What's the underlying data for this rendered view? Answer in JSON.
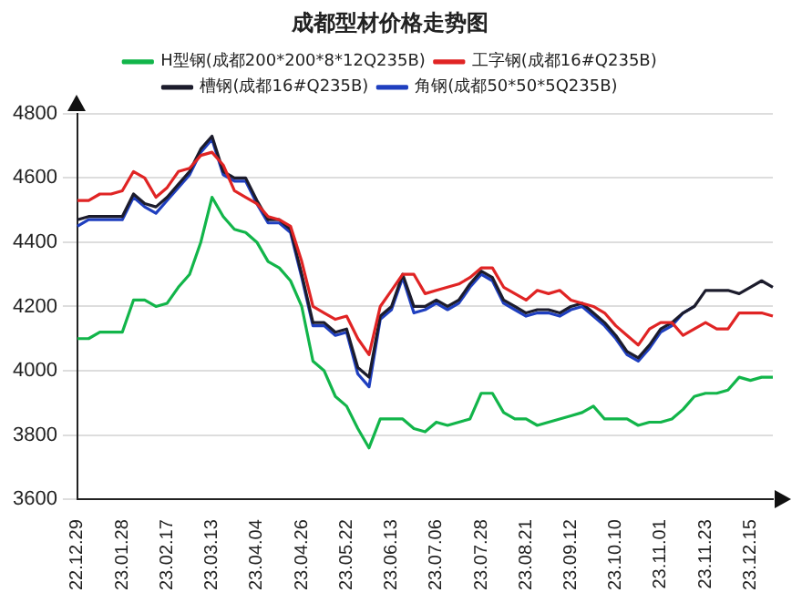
{
  "chart_data": {
    "type": "line",
    "title": "成都型材价格走势图",
    "categories": [
      "22.12.29",
      null,
      null,
      null,
      "23.01.28",
      null,
      null,
      null,
      "23.02.17",
      null,
      null,
      null,
      "23.03.13",
      null,
      null,
      null,
      "23.04.04",
      null,
      null,
      null,
      "23.04.26",
      null,
      null,
      null,
      "23.05.22",
      null,
      null,
      null,
      "23.06.13",
      null,
      null,
      null,
      "23.07.06",
      null,
      null,
      null,
      "23.07.28",
      null,
      null,
      null,
      "23.08.21",
      null,
      null,
      null,
      "23.09.12",
      null,
      null,
      null,
      "23.10.10",
      null,
      null,
      null,
      "23.11.01",
      null,
      null,
      null,
      "23.11.23",
      null,
      null,
      null,
      "23.12.15",
      null,
      null
    ],
    "series": [
      {
        "name": "H型钢(成都200*200*8*12Q235B)",
        "color": "#12b54a",
        "values": [
          4100,
          4100,
          4120,
          4120,
          4120,
          4220,
          4220,
          4200,
          4210,
          4260,
          4300,
          4400,
          4540,
          4480,
          4440,
          4430,
          4400,
          4340,
          4320,
          4280,
          4200,
          4030,
          4000,
          3920,
          3890,
          3820,
          3760,
          3850,
          3850,
          3850,
          3820,
          3810,
          3840,
          3830,
          3840,
          3850,
          3930,
          3930,
          3870,
          3850,
          3850,
          3830,
          3840,
          3850,
          3860,
          3870,
          3890,
          3850,
          3850,
          3850,
          3830,
          3840,
          3840,
          3850,
          3880,
          3920,
          3930,
          3930,
          3940,
          3980,
          3970,
          3980,
          3980
        ]
      },
      {
        "name": "工字钢(成都16#Q235B)",
        "color": "#e02424",
        "values": [
          4530,
          4530,
          4550,
          4550,
          4560,
          4620,
          4600,
          4540,
          4570,
          4620,
          4630,
          4670,
          4680,
          4640,
          4560,
          4540,
          4520,
          4480,
          4470,
          4450,
          4340,
          4200,
          4180,
          4160,
          4170,
          4100,
          4050,
          4200,
          4250,
          4300,
          4300,
          4240,
          4250,
          4260,
          4270,
          4290,
          4320,
          4320,
          4260,
          4240,
          4220,
          4250,
          4240,
          4250,
          4220,
          4210,
          4200,
          4180,
          4140,
          4110,
          4080,
          4130,
          4150,
          4150,
          4110,
          4130,
          4150,
          4130,
          4130,
          4180,
          4180,
          4180,
          4170
        ]
      },
      {
        "name": "槽钢(成都16#Q235B)",
        "color": "#1c1c2c",
        "values": [
          4470,
          4480,
          4480,
          4480,
          4480,
          4550,
          4520,
          4510,
          4540,
          4580,
          4620,
          4690,
          4730,
          4620,
          4600,
          4600,
          4530,
          4470,
          4470,
          4440,
          4300,
          4150,
          4150,
          4120,
          4130,
          4010,
          3980,
          4170,
          4200,
          4300,
          4200,
          4200,
          4220,
          4200,
          4220,
          4270,
          4310,
          4290,
          4220,
          4200,
          4180,
          4190,
          4190,
          4180,
          4200,
          4210,
          4180,
          4150,
          4110,
          4060,
          4040,
          4080,
          4130,
          4150,
          4180,
          4200,
          4250,
          4250,
          4250,
          4240,
          4260,
          4280,
          4260
        ]
      },
      {
        "name": "角钢(成都50*50*5Q235B)",
        "color": "#1f3fbf",
        "values": [
          4450,
          4470,
          4470,
          4470,
          4470,
          4540,
          4510,
          4490,
          4530,
          4570,
          4610,
          4680,
          4720,
          4610,
          4590,
          4590,
          4520,
          4460,
          4460,
          4430,
          4290,
          4140,
          4140,
          4110,
          4120,
          3990,
          3950,
          4160,
          4190,
          4290,
          4180,
          4190,
          4210,
          4190,
          4210,
          4260,
          4300,
          4280,
          4210,
          4190,
          4170,
          4180,
          4180,
          4170,
          4190,
          4200,
          4170,
          4140,
          4100,
          4050,
          4030,
          4070,
          4120,
          4140,
          4180,
          4200,
          null,
          null,
          null,
          null,
          null,
          null,
          null
        ]
      }
    ],
    "ylim": [
      3600,
      4800
    ],
    "yticks": [
      3600,
      3800,
      4000,
      4200,
      4400,
      4600,
      4800
    ],
    "grid": "y",
    "legend": "top",
    "marker": "none",
    "line_style": "solid"
  }
}
